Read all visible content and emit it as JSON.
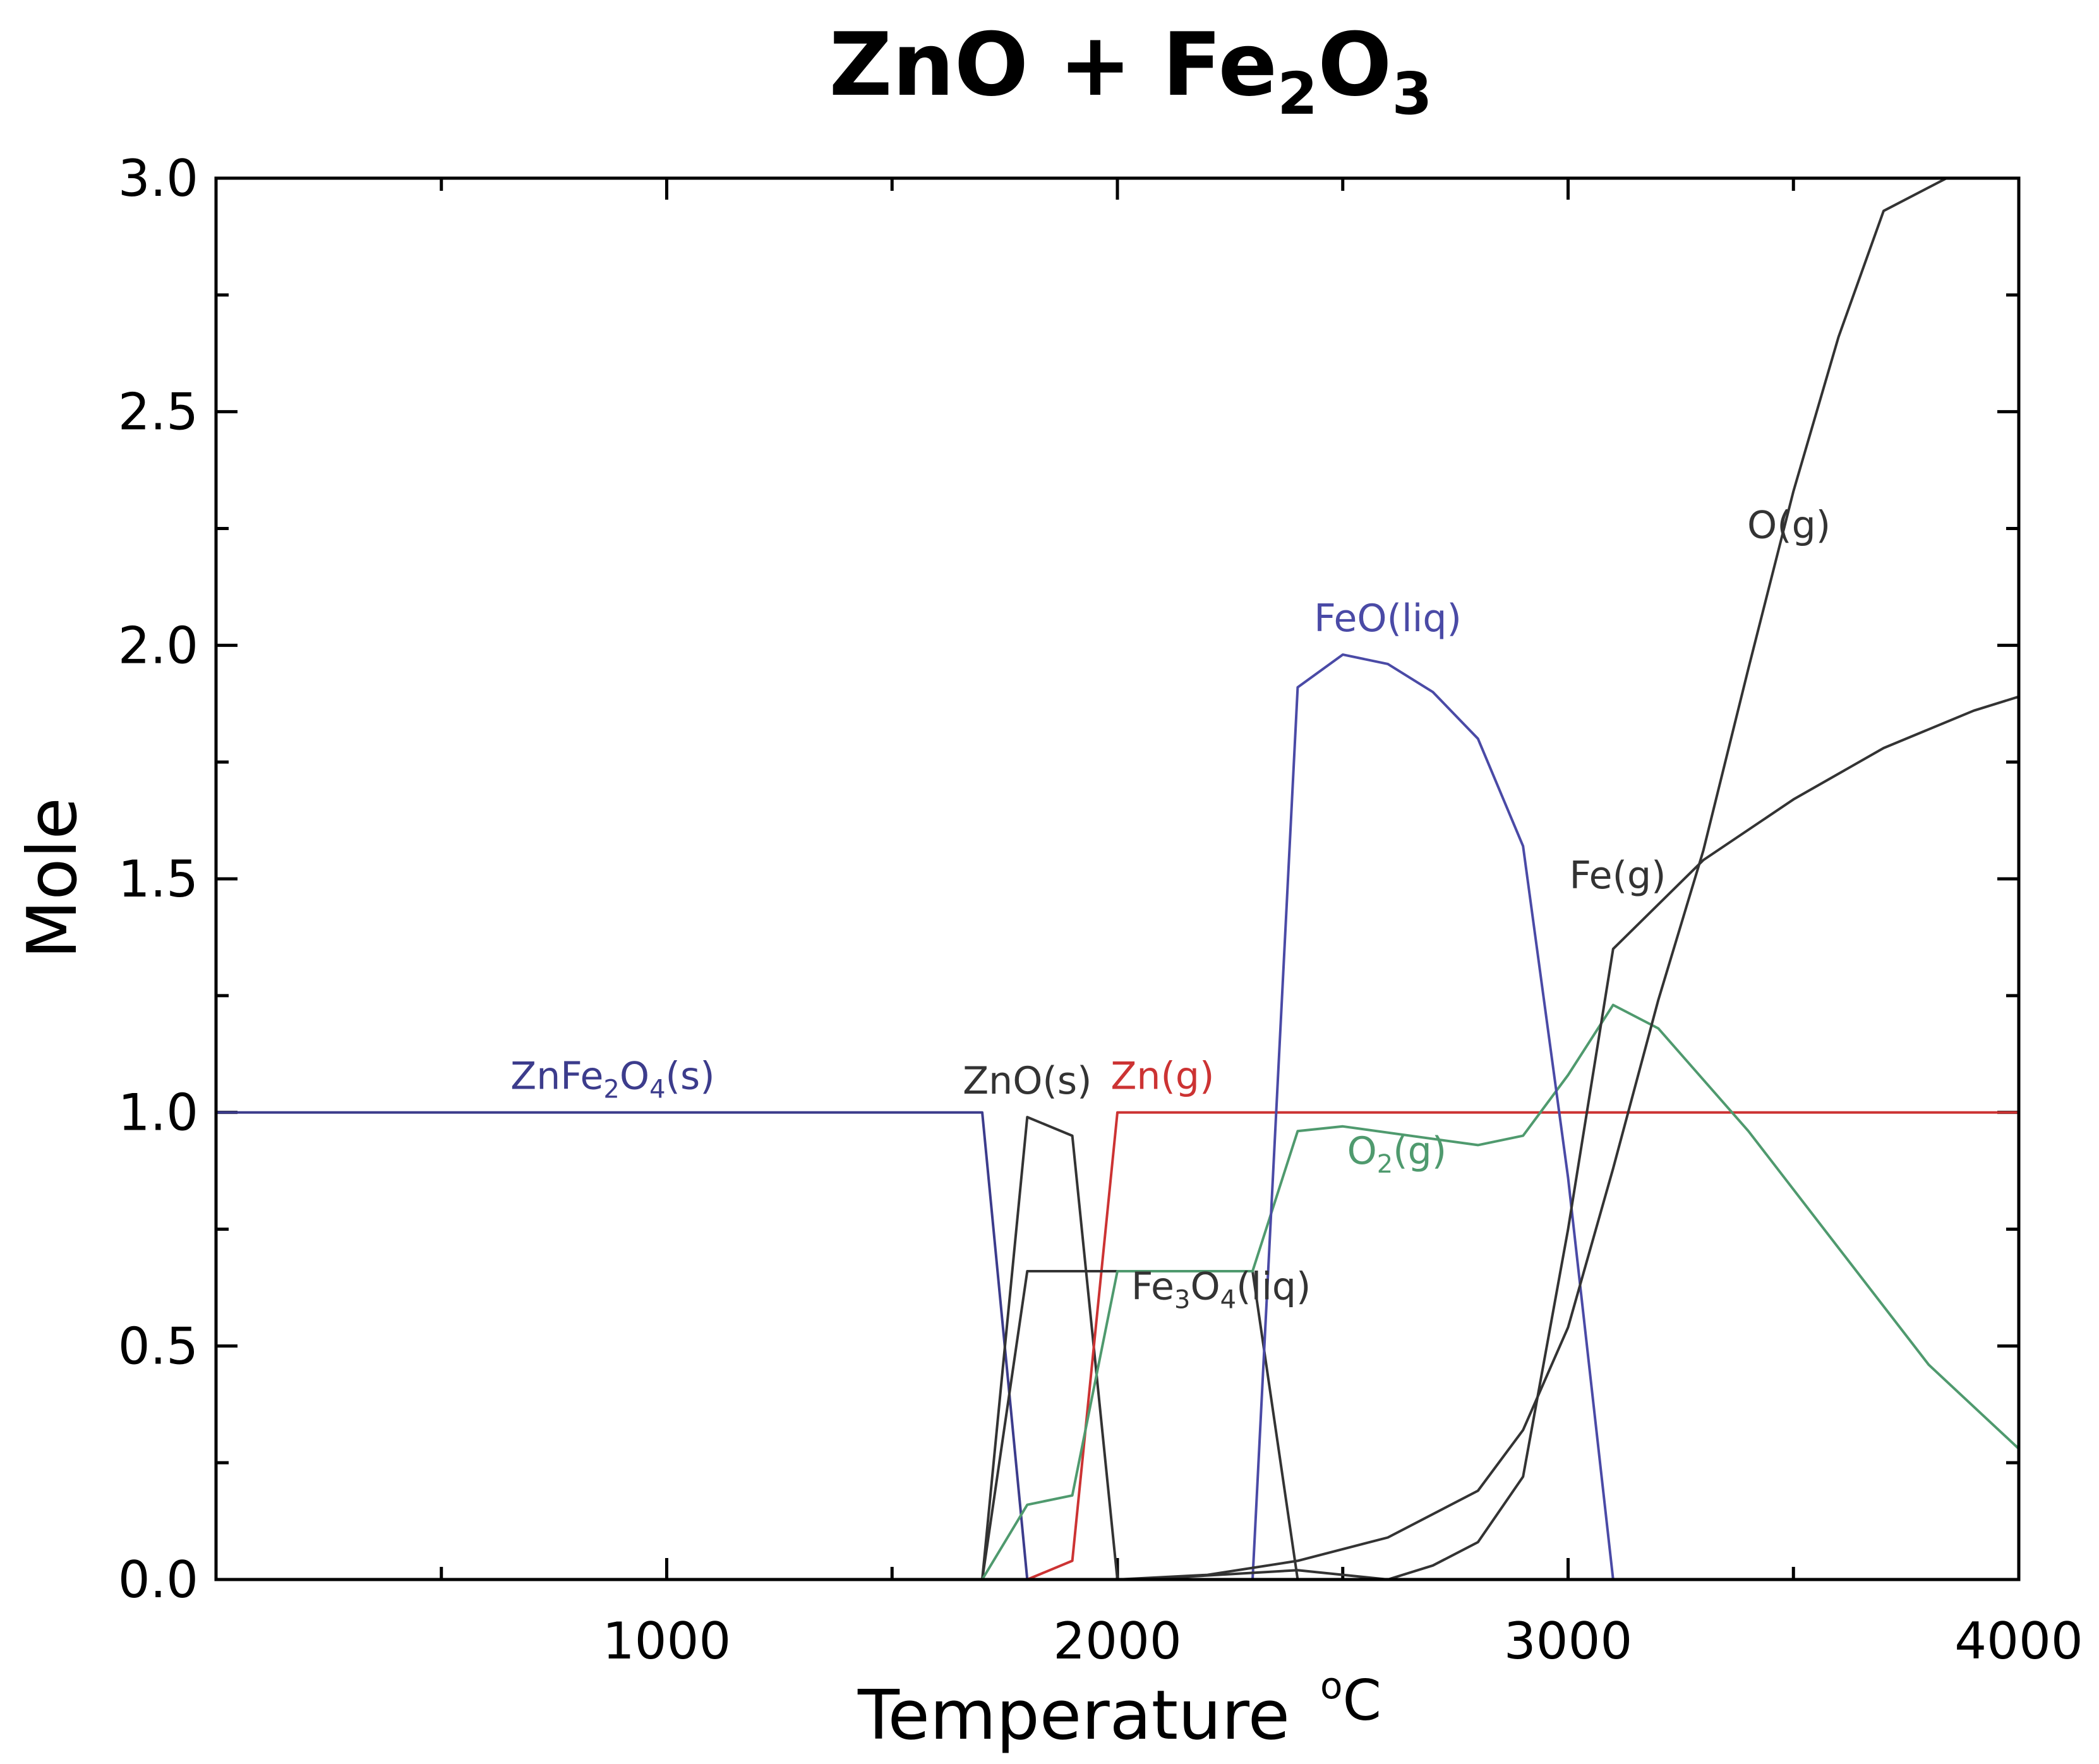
{
  "chart_data": {
    "type": "line",
    "title": {
      "base": "ZnO + Fe",
      "sub1": "2",
      "mid": "O",
      "sub2": "3"
    },
    "xlabel": "Temperature",
    "xunit": {
      "sup": "o",
      "unit": "C"
    },
    "ylabel": "Mole",
    "xlim": [
      0,
      4000
    ],
    "ylim": [
      0,
      3.0
    ],
    "x_ticks": [
      1000,
      2000,
      3000,
      4000
    ],
    "x_tick_labels": [
      "1000",
      "2000",
      "3000",
      "4000"
    ],
    "y_ticks": [
      0,
      0.5,
      1.0,
      1.5,
      2.0,
      2.5,
      3.0
    ],
    "y_tick_labels": [
      "0.0",
      "0.5",
      "1.0",
      "1.5",
      "2.0",
      "2.5",
      "3.0"
    ],
    "series": [
      {
        "name": "ZnFe2O4(s)",
        "color": "#3c3c8c",
        "label": {
          "parts": [
            [
              "ZnFe",
              ""
            ],
            [
              "2",
              "sub"
            ],
            [
              "O",
              ""
            ],
            [
              "4",
              "sub"
            ],
            [
              "(s)",
              ""
            ]
          ],
          "x": 880,
          "y": 1.05
        },
        "points": [
          [
            0,
            1.0
          ],
          [
            1700,
            1.0
          ],
          [
            1800,
            0.0
          ]
        ]
      },
      {
        "name": "ZnO(s)",
        "color": "#333333",
        "label": {
          "parts": [
            [
              "ZnO(s)",
              ""
            ]
          ],
          "x": 1800,
          "y": 1.04
        },
        "points": [
          [
            1700,
            0.0
          ],
          [
            1800,
            0.99
          ],
          [
            1900,
            0.95
          ],
          [
            2000,
            0.0
          ]
        ]
      },
      {
        "name": "Zn(g)",
        "color": "#cc3333",
        "label": {
          "parts": [
            [
              "Zn(g)",
              ""
            ]
          ],
          "x": 2100,
          "y": 1.05
        },
        "points": [
          [
            1800,
            0.0
          ],
          [
            1900,
            0.04
          ],
          [
            2000,
            1.0
          ],
          [
            4000,
            1.0
          ]
        ]
      },
      {
        "name": "Fe3O4(liq)",
        "color": "#333333",
        "label": {
          "parts": [
            [
              "Fe",
              ""
            ],
            [
              "3",
              "sub"
            ],
            [
              "O",
              ""
            ],
            [
              "4",
              "sub"
            ],
            [
              "(liq)",
              ""
            ]
          ],
          "x": 2230,
          "y": 0.6
        },
        "points": [
          [
            1700,
            0.0
          ],
          [
            1800,
            0.66
          ],
          [
            2300,
            0.66
          ],
          [
            2400,
            0.0
          ]
        ]
      },
      {
        "name": "O2(g)",
        "color": "#4f9a6e",
        "label": {
          "parts": [
            [
              "O",
              ""
            ],
            [
              "2",
              "sub"
            ],
            [
              "(g)",
              ""
            ]
          ],
          "x": 2620,
          "y": 0.89
        },
        "points": [
          [
            1700,
            0.0
          ],
          [
            1800,
            0.16
          ],
          [
            1900,
            0.18
          ],
          [
            2000,
            0.66
          ],
          [
            2300,
            0.66
          ],
          [
            2400,
            0.96
          ],
          [
            2500,
            0.97
          ],
          [
            2800,
            0.93
          ],
          [
            2900,
            0.95
          ],
          [
            3000,
            1.08
          ],
          [
            3100,
            1.23
          ],
          [
            3200,
            1.18
          ],
          [
            3400,
            0.96
          ],
          [
            3600,
            0.71
          ],
          [
            3800,
            0.46
          ],
          [
            4000,
            0.28
          ]
        ]
      },
      {
        "name": "FeO(liq)",
        "color": "#4a4aa6",
        "label": {
          "parts": [
            [
              "FeO(liq)",
              ""
            ]
          ],
          "x": 2600,
          "y": 2.03
        },
        "points": [
          [
            2300,
            0.0
          ],
          [
            2400,
            1.91
          ],
          [
            2500,
            1.98
          ],
          [
            2600,
            1.96
          ],
          [
            2700,
            1.9
          ],
          [
            2800,
            1.8
          ],
          [
            2900,
            1.57
          ],
          [
            3000,
            0.86
          ],
          [
            3100,
            0.0
          ]
        ]
      },
      {
        "name": "Fe(g)",
        "color": "#333333",
        "label": {
          "parts": [
            [
              "Fe(g)",
              ""
            ]
          ],
          "x": 3110,
          "y": 1.48
        },
        "points": [
          [
            2050,
            0.0
          ],
          [
            2400,
            0.02
          ],
          [
            2600,
            0.0
          ],
          [
            2700,
            0.03
          ],
          [
            2800,
            0.08
          ],
          [
            2900,
            0.22
          ],
          [
            3000,
            0.75
          ],
          [
            3100,
            1.35
          ],
          [
            3300,
            1.54
          ],
          [
            3500,
            1.67
          ],
          [
            3700,
            1.78
          ],
          [
            3900,
            1.86
          ],
          [
            4000,
            1.89
          ]
        ]
      },
      {
        "name": "O(g)",
        "color": "#333333",
        "label": {
          "parts": [
            [
              "O(g)",
              ""
            ]
          ],
          "x": 3490,
          "y": 2.23
        },
        "points": [
          [
            2000,
            0.0
          ],
          [
            2200,
            0.01
          ],
          [
            2400,
            0.04
          ],
          [
            2600,
            0.09
          ],
          [
            2800,
            0.19
          ],
          [
            2900,
            0.32
          ],
          [
            3000,
            0.54
          ],
          [
            3100,
            0.88
          ],
          [
            3200,
            1.24
          ],
          [
            3300,
            1.56
          ],
          [
            3400,
            1.95
          ],
          [
            3500,
            2.33
          ],
          [
            3600,
            2.66
          ],
          [
            3700,
            2.93
          ],
          [
            3840,
            3.0
          ]
        ]
      }
    ]
  }
}
